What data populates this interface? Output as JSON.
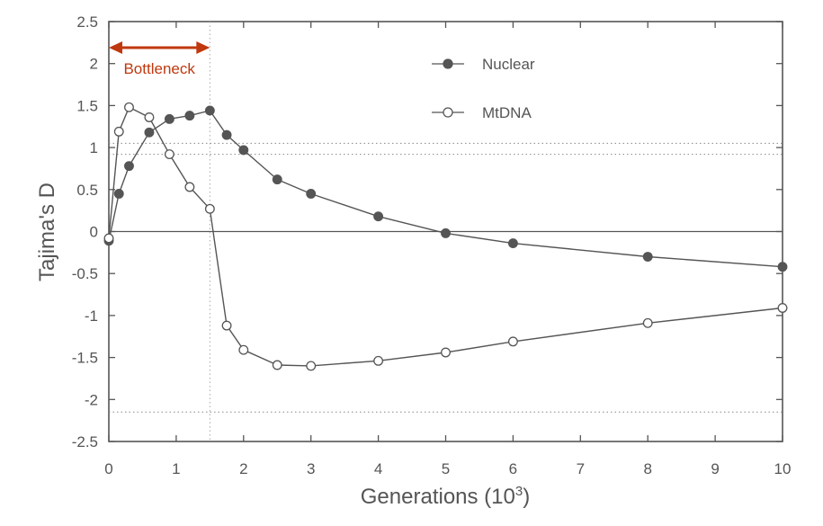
{
  "chart_data": {
    "type": "line",
    "xlabel": "Generations (10",
    "xlabel_sup": "3",
    "xlabel_close": ")",
    "ylabel": "Tajima's D",
    "xlim": [
      0,
      10
    ],
    "ylim": [
      -2.5,
      2.5
    ],
    "x_ticks": [
      0,
      1,
      2,
      3,
      4,
      5,
      6,
      7,
      8,
      9,
      10
    ],
    "x_tick_labels": [
      "0",
      "1",
      "2",
      "3",
      "4",
      "5",
      "6",
      "7",
      "8",
      "9",
      "10"
    ],
    "y_ticks": [
      2.5,
      2,
      1.5,
      1,
      0.5,
      0,
      -0.5,
      -1,
      -1.5,
      -2,
      -2.5
    ],
    "y_tick_labels": [
      "2.5",
      "2",
      "1.5",
      "1",
      "0.5",
      "0",
      "-0.5",
      "-1",
      "-1.5",
      "-2",
      "-2.5"
    ],
    "legend_position": "top-right",
    "series": [
      {
        "name": "Nuclear",
        "marker": "filled-circle",
        "color": "#555555",
        "x": [
          0,
          0.15,
          0.3,
          0.6,
          0.9,
          1.2,
          1.5,
          1.75,
          2.0,
          2.5,
          3.0,
          4.0,
          5.0,
          6.0,
          8.0,
          10.0
        ],
        "y": [
          -0.11,
          0.45,
          0.78,
          1.18,
          1.34,
          1.38,
          1.44,
          1.15,
          0.97,
          0.62,
          0.45,
          0.18,
          -0.02,
          -0.14,
          -0.3,
          -0.42
        ]
      },
      {
        "name": "MtDNA",
        "marker": "open-circle",
        "color": "#555555",
        "x": [
          0,
          0.15,
          0.3,
          0.6,
          0.9,
          1.2,
          1.5,
          1.75,
          2.0,
          2.5,
          3.0,
          4.0,
          5.0,
          6.0,
          8.0,
          10.0
        ],
        "y": [
          -0.08,
          1.19,
          1.48,
          1.36,
          0.92,
          0.53,
          0.27,
          -1.12,
          -1.41,
          -1.59,
          -1.6,
          -1.54,
          -1.44,
          -1.31,
          -1.09,
          -0.91
        ]
      }
    ],
    "reference_lines": {
      "horizontal_solid": [
        0
      ],
      "horizontal_dotted": [
        1.05,
        0.92,
        -2.15
      ],
      "vertical_dotted": [
        1.5
      ]
    },
    "annotation": {
      "text": "Bottleneck",
      "x_start": 0,
      "x_end": 1.5,
      "color": "#c0380e"
    }
  }
}
